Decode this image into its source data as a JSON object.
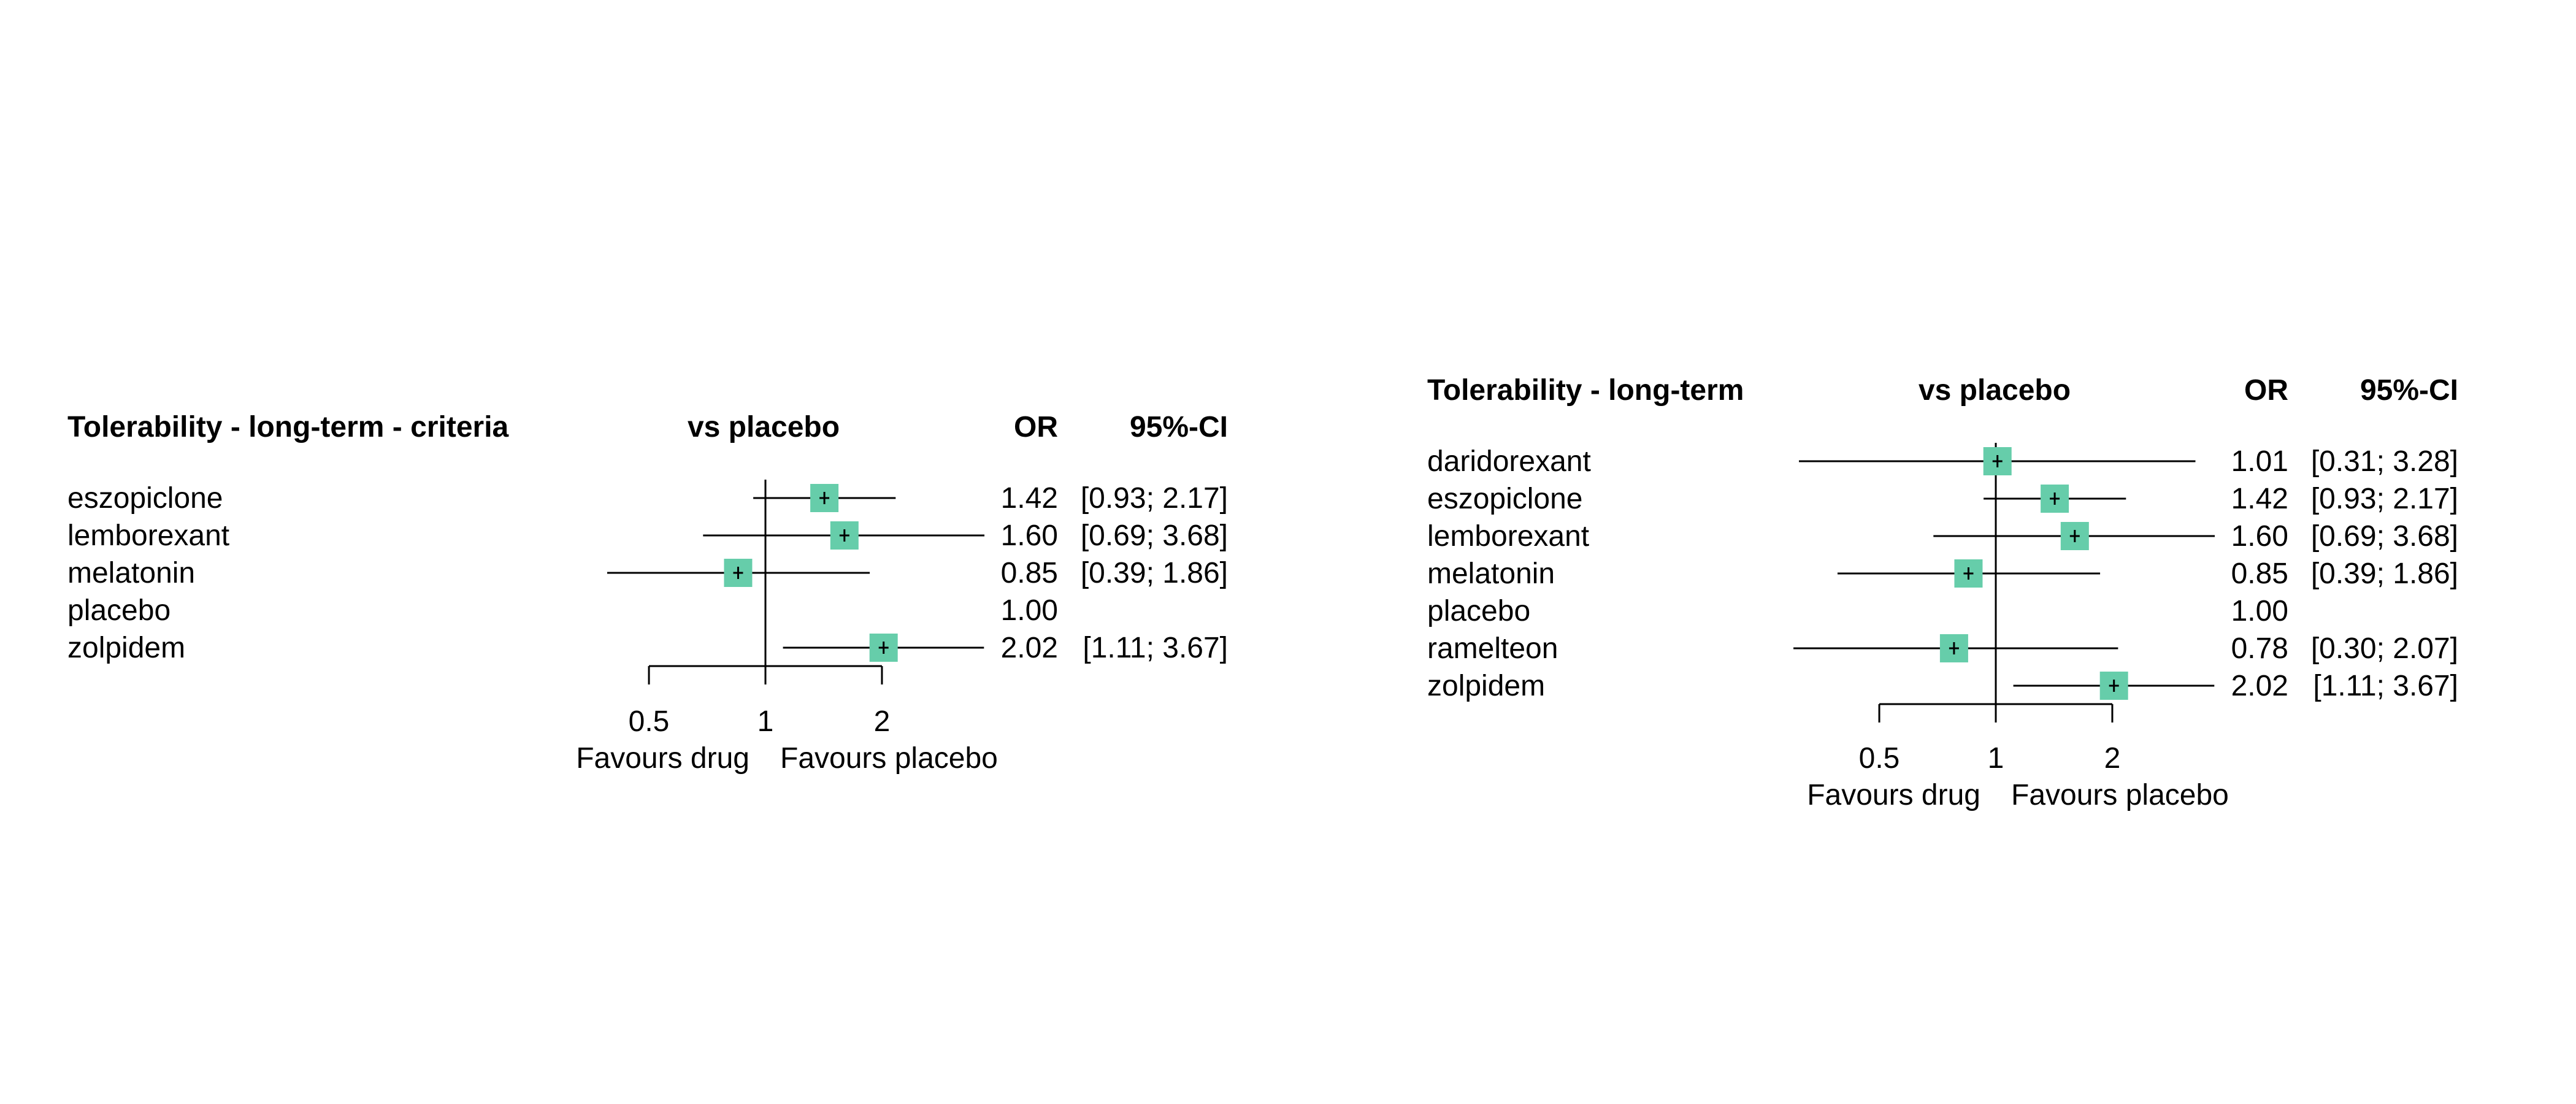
{
  "colors": {
    "marker": "#66cdaa",
    "line": "#000000"
  },
  "chart_data": [
    {
      "type": "forest",
      "title": "Tolerability - long-term - criteria",
      "comparison_label": "vs placebo",
      "columns": [
        "OR",
        "95%-CI"
      ],
      "x_scale": "log",
      "xticks": [
        "0.5",
        "1",
        "2"
      ],
      "xtick_values": [
        0.5,
        1,
        2
      ],
      "favours_left": "Favours drug",
      "favours_right": "Favours placebo",
      "rows": [
        {
          "name": "eszopiclone",
          "or": 1.42,
          "lo": 0.93,
          "hi": 2.17,
          "or_text": "1.42",
          "ci_text": "[0.93; 2.17]"
        },
        {
          "name": "lemborexant",
          "or": 1.6,
          "lo": 0.69,
          "hi": 3.68,
          "or_text": "1.60",
          "ci_text": "[0.69; 3.68]"
        },
        {
          "name": "melatonin",
          "or": 0.85,
          "lo": 0.39,
          "hi": 1.86,
          "or_text": "0.85",
          "ci_text": "[0.39; 1.86]"
        },
        {
          "name": "placebo",
          "or": 1.0,
          "lo": null,
          "hi": null,
          "or_text": "1.00",
          "ci_text": ""
        },
        {
          "name": "zolpidem",
          "or": 2.02,
          "lo": 1.11,
          "hi": 3.67,
          "or_text": "2.02",
          "ci_text": "[1.11; 3.67]"
        }
      ]
    },
    {
      "type": "forest",
      "title": "Tolerability - long-term",
      "comparison_label": "vs placebo",
      "columns": [
        "OR",
        "95%-CI"
      ],
      "x_scale": "log",
      "xticks": [
        "0.5",
        "1",
        "2"
      ],
      "xtick_values": [
        0.5,
        1,
        2
      ],
      "favours_left": "Favours drug",
      "favours_right": "Favours placebo",
      "rows": [
        {
          "name": "daridorexant",
          "or": 1.01,
          "lo": 0.31,
          "hi": 3.28,
          "or_text": "1.01",
          "ci_text": "[0.31; 3.28]"
        },
        {
          "name": "eszopiclone",
          "or": 1.42,
          "lo": 0.93,
          "hi": 2.17,
          "or_text": "1.42",
          "ci_text": "[0.93; 2.17]"
        },
        {
          "name": "lemborexant",
          "or": 1.6,
          "lo": 0.69,
          "hi": 3.68,
          "or_text": "1.60",
          "ci_text": "[0.69; 3.68]"
        },
        {
          "name": "melatonin",
          "or": 0.85,
          "lo": 0.39,
          "hi": 1.86,
          "or_text": "0.85",
          "ci_text": "[0.39; 1.86]"
        },
        {
          "name": "placebo",
          "or": 1.0,
          "lo": null,
          "hi": null,
          "or_text": "1.00",
          "ci_text": ""
        },
        {
          "name": "ramelteon",
          "or": 0.78,
          "lo": 0.3,
          "hi": 2.07,
          "or_text": "0.78",
          "ci_text": "[0.30; 2.07]"
        },
        {
          "name": "zolpidem",
          "or": 2.02,
          "lo": 1.11,
          "hi": 3.67,
          "or_text": "2.02",
          "ci_text": "[1.11; 3.67]"
        }
      ]
    }
  ]
}
